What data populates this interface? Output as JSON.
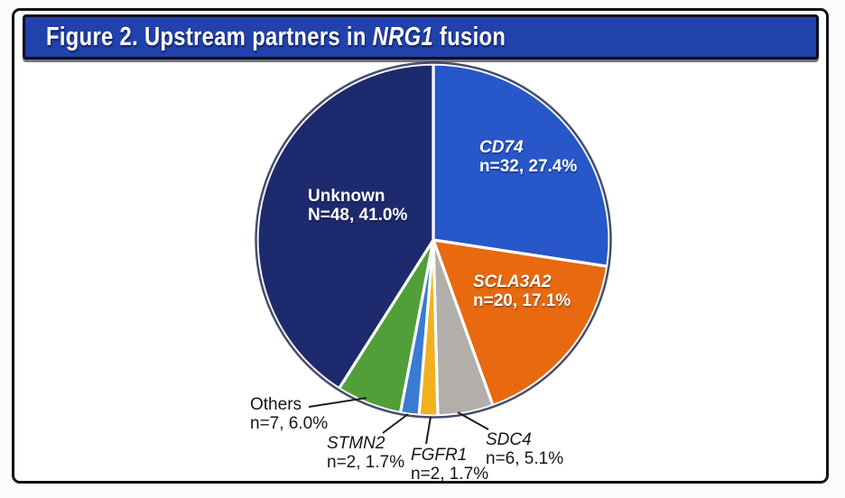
{
  "title": {
    "prefix": "Figure 2. Upstream partners in ",
    "gene": "NRG1",
    "suffix": " fusion"
  },
  "chart_data": {
    "type": "pie",
    "title": "Figure 2. Upstream partners in NRG1 fusion",
    "start_angle": "top, clockwise",
    "legend_position": "none (direct labels)",
    "slices": [
      {
        "label": "CD74",
        "n": 32,
        "pct": 27.4,
        "value_label": "n=32, 27.4%",
        "color": "#2757c8",
        "label_placement": "inside",
        "italic": true
      },
      {
        "label": "SCLA3A2",
        "n": 20,
        "pct": 17.1,
        "value_label": "n=20, 17.1%",
        "color": "#e8690f",
        "label_placement": "inside",
        "italic": true
      },
      {
        "label": "SDC4",
        "n": 6,
        "pct": 5.1,
        "value_label": "n=6, 5.1%",
        "color": "#b2afab",
        "label_placement": "outside",
        "italic": true
      },
      {
        "label": "FGFR1",
        "n": 2,
        "pct": 1.7,
        "value_label": "n=2, 1.7%",
        "color": "#f2b01e",
        "label_placement": "outside",
        "italic": true
      },
      {
        "label": "STMN2",
        "n": 2,
        "pct": 1.7,
        "value_label": "n=2, 1.7%",
        "color": "#3a7ad2",
        "label_placement": "outside",
        "italic": true
      },
      {
        "label": "Others",
        "n": 7,
        "pct": 6.0,
        "value_label": "n=7, 6.0%",
        "color": "#519f38",
        "label_placement": "outside",
        "italic": false
      },
      {
        "label": "Unknown",
        "n": 48,
        "pct": 41.0,
        "value_label": "N=48, 41.0%",
        "color": "#1e2a6e",
        "label_placement": "inside",
        "italic": false
      }
    ]
  },
  "colors": {
    "title_bar": "#2141ab",
    "frame_border": "#121216",
    "slice_separator": "#ffffff",
    "pie_outline": "#16204a"
  }
}
